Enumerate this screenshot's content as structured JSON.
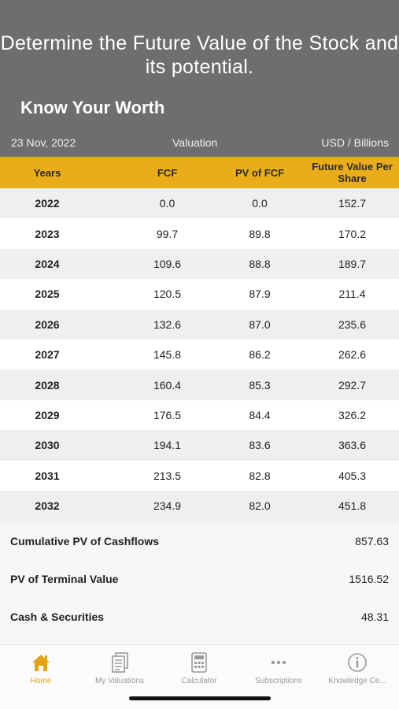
{
  "promo": {
    "headline": "Determine the Future Value of the Stock and its potential.",
    "subtitle": "Know Your Worth"
  },
  "meta": {
    "date": "23 Nov, 2022",
    "title": "Valuation",
    "unit": "USD / Billions"
  },
  "table": {
    "headers": [
      "Years",
      "FCF",
      "PV of FCF",
      "Future Value Per Share"
    ],
    "rows": [
      [
        "2022",
        "0.0",
        "0.0",
        "152.7"
      ],
      [
        "2023",
        "99.7",
        "89.8",
        "170.2"
      ],
      [
        "2024",
        "109.6",
        "88.8",
        "189.7"
      ],
      [
        "2025",
        "120.5",
        "87.9",
        "211.4"
      ],
      [
        "2026",
        "132.6",
        "87.0",
        "235.6"
      ],
      [
        "2027",
        "145.8",
        "86.2",
        "262.6"
      ],
      [
        "2028",
        "160.4",
        "85.3",
        "292.7"
      ],
      [
        "2029",
        "176.5",
        "84.4",
        "326.2"
      ],
      [
        "2030",
        "194.1",
        "83.6",
        "363.6"
      ],
      [
        "2031",
        "213.5",
        "82.8",
        "405.3"
      ],
      [
        "2032",
        "234.9",
        "82.0",
        "451.8"
      ]
    ]
  },
  "summary": [
    {
      "label": "Cumulative PV of Cashflows",
      "value": "857.63"
    },
    {
      "label": "PV of Terminal Value",
      "value": "1516.52"
    },
    {
      "label": "Cash & Securities",
      "value": "48.31"
    }
  ],
  "tabs": [
    {
      "label": "Home",
      "icon": "home-icon",
      "active": true
    },
    {
      "label": "My Valuations",
      "icon": "document-stack-icon",
      "active": false
    },
    {
      "label": "Calculator",
      "icon": "calculator-icon",
      "active": false
    },
    {
      "label": "Subscriptions",
      "icon": "more-dots-icon",
      "active": false
    },
    {
      "label": "Knowledge Ce...",
      "icon": "info-icon",
      "active": false
    }
  ],
  "colors": {
    "header_bg": "#6e6e6e",
    "accent": "#e9ad1a",
    "tab_active": "#e0a512",
    "tab_inactive": "#9a9a9a"
  }
}
